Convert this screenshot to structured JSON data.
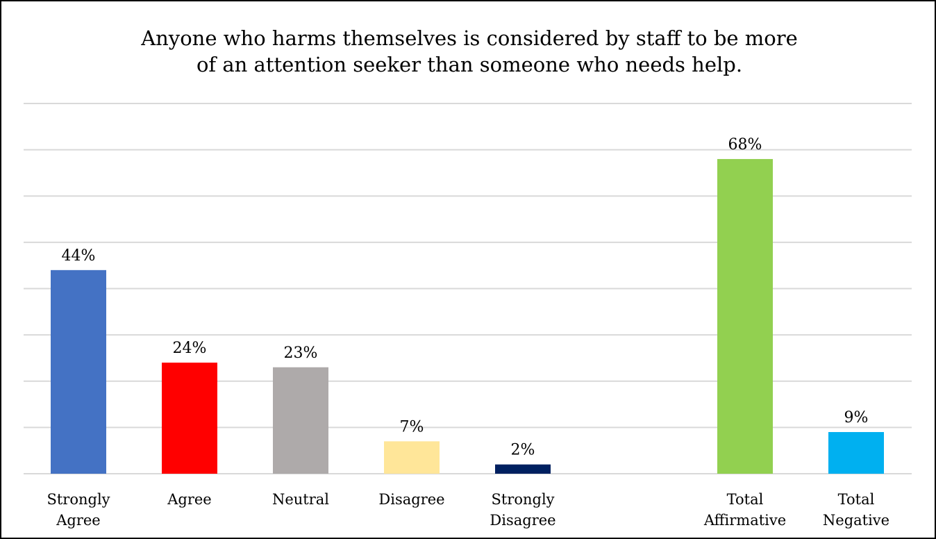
{
  "chart_data": {
    "type": "bar",
    "title_lines": [
      "Anyone who harms themselves is considered by staff to be more",
      "of an attention seeker than someone who needs help."
    ],
    "xlabel": "",
    "ylabel": "",
    "ylim": [
      0,
      80
    ],
    "y_unit": "%",
    "grid": true,
    "legend": "none",
    "groups": [
      {
        "bars": [
          {
            "category": [
              "Strongly",
              "Agree"
            ],
            "value": 44,
            "label": "44%",
            "color": "#4472C4"
          },
          {
            "category": [
              "Agree"
            ],
            "value": 24,
            "label": "24%",
            "color": "#FF0000"
          },
          {
            "category": [
              "Neutral"
            ],
            "value": 23,
            "label": "23%",
            "color": "#AEAAAA"
          },
          {
            "category": [
              "Disagree"
            ],
            "value": 7,
            "label": "7%",
            "color": "#FFE699"
          },
          {
            "category": [
              "Strongly",
              "Disagree"
            ],
            "value": 2,
            "label": "2%",
            "color": "#002060"
          }
        ]
      },
      {
        "bars": [
          {
            "category": [
              "Total",
              "Affirmative"
            ],
            "value": 68,
            "label": "68%",
            "color": "#92D050"
          },
          {
            "category": [
              "Total",
              "Negative"
            ],
            "value": 9,
            "label": "9%",
            "color": "#00B0F0"
          }
        ]
      }
    ]
  }
}
